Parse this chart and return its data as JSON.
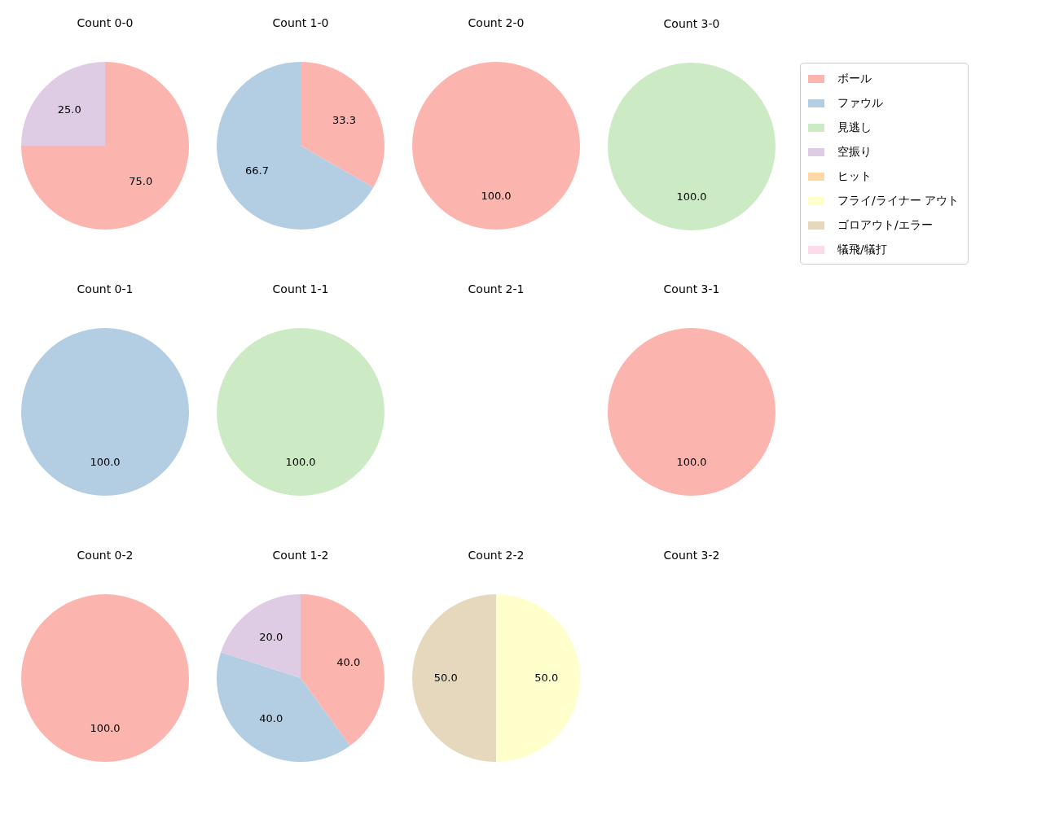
{
  "chart_data": [
    {
      "type": "pie",
      "title": "Count 0-0",
      "categories": [
        null,
        null
      ],
      "values": [
        75.0,
        25.0
      ],
      "colors": [
        "#fbb4ae",
        "#decbe4"
      ],
      "value_labels": [
        "75.0",
        "25.0"
      ]
    },
    {
      "type": "pie",
      "title": "Count 1-0",
      "categories": [
        null,
        null
      ],
      "values": [
        33.3,
        66.7
      ],
      "colors": [
        "#fbb4ae",
        "#b3cde3"
      ],
      "value_labels": [
        "33.3",
        "66.7"
      ]
    },
    {
      "type": "pie",
      "title": "Count 2-0",
      "categories": [
        null
      ],
      "values": [
        100.0
      ],
      "colors": [
        "#fbb4ae"
      ],
      "value_labels": [
        "100.0"
      ]
    },
    {
      "type": "pie",
      "title": "Count 3-0",
      "categories": [
        "ボール",
        "ファウル",
        "見逃し",
        "空振り",
        "ヒット",
        "フライ/ライナー アウト",
        "ゴロアウト/エラー",
        "犠飛/犠打"
      ],
      "values": [
        null,
        null,
        100.0,
        null,
        null,
        null,
        null,
        null
      ],
      "colors": [
        "#fbb4ae",
        "#b3cde3",
        "#ccebc5",
        "#decbe4",
        "#fed9a6",
        "#ffffcc",
        "#e5d8bd",
        "#fddaec"
      ],
      "value_labels": [
        null,
        null,
        "100.0",
        null,
        null,
        null,
        null,
        null
      ],
      "legend": "right"
    },
    {
      "type": "pie",
      "title": "Count 0-1",
      "categories": [
        null
      ],
      "values": [
        100.0
      ],
      "colors": [
        "#b3cde3"
      ],
      "value_labels": [
        "100.0"
      ]
    },
    {
      "type": "pie",
      "title": "Count 1-1",
      "categories": [
        null
      ],
      "values": [
        100.0
      ],
      "colors": [
        "#ccebc5"
      ],
      "value_labels": [
        "100.0"
      ]
    },
    {
      "type": "other",
      "title": "Count 2-1"
    },
    {
      "type": "pie",
      "title": "Count 3-1",
      "categories": [
        null
      ],
      "values": [
        100.0
      ],
      "colors": [
        "#fbb4ae"
      ],
      "value_labels": [
        "100.0"
      ]
    },
    {
      "type": "pie",
      "title": "Count 0-2",
      "categories": [
        null
      ],
      "values": [
        100.0
      ],
      "colors": [
        "#fbb4ae"
      ],
      "value_labels": [
        "100.0"
      ]
    },
    {
      "type": "pie",
      "title": "Count 1-2",
      "categories": [
        null,
        null,
        null
      ],
      "values": [
        40.0,
        40.0,
        20.0
      ],
      "colors": [
        "#fbb4ae",
        "#b3cde3",
        "#decbe4"
      ],
      "value_labels": [
        "40.0",
        "40.0",
        "20.0"
      ]
    },
    {
      "type": "pie",
      "title": "Count 2-2",
      "categories": [
        null,
        null
      ],
      "values": [
        50.0,
        50.0
      ],
      "colors": [
        "#ffffcc",
        "#e5d8bd"
      ],
      "value_labels": [
        "50.0",
        "50.0"
      ]
    },
    {
      "type": "other",
      "title": "Count 3-2"
    }
  ]
}
